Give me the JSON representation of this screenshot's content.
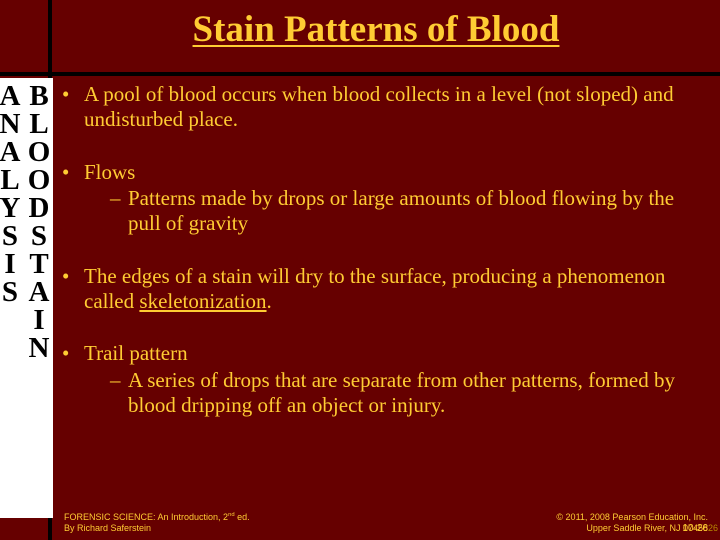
{
  "slide": {
    "title": "Stain Patterns of Blood",
    "vertical_label": "BLOODSTAIN ANALYSIS",
    "bullets": [
      {
        "text": "A pool of blood occurs when blood collects in a level (not sloped) and undisturbed place.",
        "subs": []
      },
      {
        "text": "Flows",
        "subs": [
          "Patterns made by drops or large amounts of blood flowing by the pull of gravity"
        ]
      },
      {
        "text_html": "The edges of a stain will dry to the surface, producing a phenomenon called <span class=\"underline\">skeletonization</span>.",
        "subs": []
      },
      {
        "text": "Trail pattern",
        "subs": [
          "A series of drops that are separate from other patterns, formed by blood dripping off an object or injury."
        ]
      }
    ],
    "footer": {
      "left_line1_html": "FORENSIC SCIENCE: An Introduction, 2<span class=\"sup\">nd</span> ed.",
      "left_line2": "By Richard Saferstein",
      "right_line1": "© 2011, 2008 Pearson Education, Inc.",
      "right_line2": "Upper Saddle River, NJ 07458",
      "page_main": "10-26",
      "page_sub": "26"
    },
    "colors": {
      "background": "#660000",
      "accent_text": "#FFCC33",
      "line": "#000000",
      "sidebar_text": "#000000",
      "sidebar_bg": "#ffffff"
    }
  }
}
